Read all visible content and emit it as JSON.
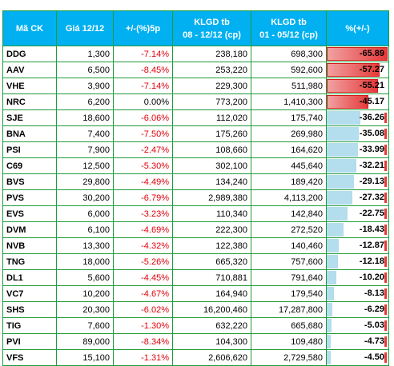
{
  "headers": {
    "code": "Mã CK",
    "price": "Giá 12/12",
    "change": "+/-(%)5p",
    "vol1_line1": "KLGD tb",
    "vol1_line2": "08 - 12/12 (cp)",
    "vol2_line1": "KLGD tb",
    "vol2_line2": "01 - 05/12 (cp)",
    "pct": "%(+/-)"
  },
  "colors": {
    "header_bg": "#00b0f0",
    "border": "#1e9c3a",
    "negative_text": "#e0000a",
    "bar_red": "#e53a3a",
    "bar_blue": "#b4dded"
  },
  "rows": [
    {
      "code": "DDG",
      "price": "1,300",
      "change": "-7.14%",
      "vol1": "238,180",
      "vol2": "698,300",
      "pct": "-65.89",
      "pct_value": -65.89
    },
    {
      "code": "AAV",
      "price": "6,500",
      "change": "-8.45%",
      "vol1": "253,220",
      "vol2": "592,600",
      "pct": "-57.27",
      "pct_value": -57.27
    },
    {
      "code": "VHE",
      "price": "3,900",
      "change": "-7.14%",
      "vol1": "229,300",
      "vol2": "511,980",
      "pct": "-55.21",
      "pct_value": -55.21
    },
    {
      "code": "NRC",
      "price": "6,200",
      "change": "0.00%",
      "vol1": "773,200",
      "vol2": "1,410,300",
      "pct": "-45.17",
      "pct_value": -45.17
    },
    {
      "code": "SJE",
      "price": "18,600",
      "change": "-6.06%",
      "vol1": "112,020",
      "vol2": "175,740",
      "pct": "-36.26",
      "pct_value": -36.26
    },
    {
      "code": "BNA",
      "price": "7,400",
      "change": "-7.50%",
      "vol1": "175,260",
      "vol2": "269,980",
      "pct": "-35.08",
      "pct_value": -35.08
    },
    {
      "code": "PSI",
      "price": "7,900",
      "change": "-2.47%",
      "vol1": "108,660",
      "vol2": "164,620",
      "pct": "-33.99",
      "pct_value": -33.99
    },
    {
      "code": "C69",
      "price": "12,500",
      "change": "-5.30%",
      "vol1": "302,100",
      "vol2": "445,640",
      "pct": "-32.21",
      "pct_value": -32.21
    },
    {
      "code": "BVS",
      "price": "29,800",
      "change": "-4.49%",
      "vol1": "134,240",
      "vol2": "189,420",
      "pct": "-29.13",
      "pct_value": -29.13
    },
    {
      "code": "PVS",
      "price": "30,200",
      "change": "-6.79%",
      "vol1": "2,989,380",
      "vol2": "4,113,200",
      "pct": "-27.32",
      "pct_value": -27.32
    },
    {
      "code": "EVS",
      "price": "6,000",
      "change": "-3.23%",
      "vol1": "110,340",
      "vol2": "142,840",
      "pct": "-22.75",
      "pct_value": -22.75
    },
    {
      "code": "DVM",
      "price": "6,100",
      "change": "-4.69%",
      "vol1": "222,300",
      "vol2": "272,520",
      "pct": "-18.43",
      "pct_value": -18.43
    },
    {
      "code": "NVB",
      "price": "13,300",
      "change": "-4.32%",
      "vol1": "122,380",
      "vol2": "140,460",
      "pct": "-12.87",
      "pct_value": -12.87
    },
    {
      "code": "TNG",
      "price": "18,000",
      "change": "-5.26%",
      "vol1": "665,320",
      "vol2": "757,600",
      "pct": "-12.18",
      "pct_value": -12.18
    },
    {
      "code": "DL1",
      "price": "5,600",
      "change": "-4.45%",
      "vol1": "710,881",
      "vol2": "791,640",
      "pct": "-10.20",
      "pct_value": -10.2
    },
    {
      "code": "VC7",
      "price": "10,200",
      "change": "-4.67%",
      "vol1": "164,940",
      "vol2": "179,540",
      "pct": "-8.13",
      "pct_value": -8.13
    },
    {
      "code": "SHS",
      "price": "20,300",
      "change": "-6.02%",
      "vol1": "16,200,460",
      "vol2": "17,287,800",
      "pct": "-6.29",
      "pct_value": -6.29
    },
    {
      "code": "TIG",
      "price": "7,600",
      "change": "-1.30%",
      "vol1": "632,220",
      "vol2": "665,680",
      "pct": "-5.03",
      "pct_value": -5.03
    },
    {
      "code": "PVI",
      "price": "89,000",
      "change": "-8.34%",
      "vol1": "104,300",
      "vol2": "109,480",
      "pct": "-4.73",
      "pct_value": -4.73
    },
    {
      "code": "VFS",
      "price": "15,100",
      "change": "-1.31%",
      "vol1": "2,606,620",
      "vol2": "2,729,580",
      "pct": "-4.50",
      "pct_value": -4.5
    }
  ]
}
